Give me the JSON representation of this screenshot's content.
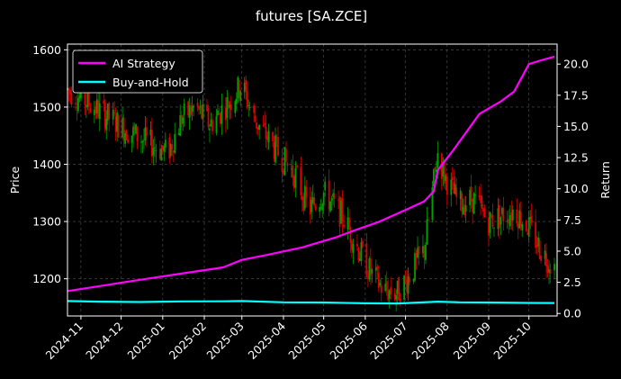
{
  "chart_data": {
    "type": "candlestick+line",
    "title": "futures [SA.ZCE]",
    "ylabel": "Price",
    "y2label": "Return",
    "grid": true,
    "legend_placement": "top-left",
    "xlim": [
      "2024-10-22",
      "2025-10-22"
    ],
    "ylim": [
      1135,
      1610
    ],
    "y2lim": [
      -0.2,
      21.6
    ],
    "x_ticks": [
      "2024-11",
      "2024-12",
      "2025-01",
      "2025-02",
      "2025-03",
      "2025-04",
      "2025-05",
      "2025-06",
      "2025-07",
      "2025-08",
      "2025-09",
      "2025-10"
    ],
    "y_ticks": [
      1200,
      1300,
      1400,
      1500,
      1600
    ],
    "y2_ticks": [
      "0.0",
      "2.5",
      "5.0",
      "7.5",
      "10.0",
      "12.5",
      "15.0",
      "17.5",
      "20.0"
    ],
    "price_anchors": [
      [
        "2024-10-22",
        1530
      ],
      [
        "2024-11-05",
        1510
      ],
      [
        "2024-11-20",
        1485
      ],
      [
        "2024-12-05",
        1460
      ],
      [
        "2024-12-20",
        1440
      ],
      [
        "2025-01-05",
        1420
      ],
      [
        "2025-01-15",
        1480
      ],
      [
        "2025-01-25",
        1500
      ],
      [
        "2025-02-05",
        1470
      ],
      [
        "2025-02-20",
        1510
      ],
      [
        "2025-03-01",
        1540
      ],
      [
        "2025-03-10",
        1480
      ],
      [
        "2025-03-25",
        1430
      ],
      [
        "2025-04-10",
        1380
      ],
      [
        "2025-04-20",
        1320
      ],
      [
        "2025-05-01",
        1350
      ],
      [
        "2025-05-15",
        1310
      ],
      [
        "2025-05-25",
        1260
      ],
      [
        "2025-06-05",
        1210
      ],
      [
        "2025-06-15",
        1180
      ],
      [
        "2025-06-25",
        1175
      ],
      [
        "2025-07-05",
        1210
      ],
      [
        "2025-07-15",
        1250
      ],
      [
        "2025-07-25",
        1420
      ],
      [
        "2025-07-30",
        1380
      ],
      [
        "2025-08-10",
        1330
      ],
      [
        "2025-08-20",
        1340
      ],
      [
        "2025-09-01",
        1300
      ],
      [
        "2025-09-10",
        1310
      ],
      [
        "2025-09-20",
        1320
      ],
      [
        "2025-10-01",
        1290
      ],
      [
        "2025-10-10",
        1250
      ],
      [
        "2025-10-20",
        1220
      ]
    ],
    "series": [
      {
        "name": "AI Strategy",
        "color": "#ff00ff",
        "axis": "right",
        "points": [
          [
            "2024-10-22",
            1.8
          ],
          [
            "2024-11-15",
            2.2
          ],
          [
            "2024-12-15",
            2.7
          ],
          [
            "2025-01-15",
            3.2
          ],
          [
            "2025-02-15",
            3.7
          ],
          [
            "2025-03-01",
            4.3
          ],
          [
            "2025-03-20",
            4.7
          ],
          [
            "2025-04-15",
            5.3
          ],
          [
            "2025-05-10",
            6.1
          ],
          [
            "2025-05-25",
            6.7
          ],
          [
            "2025-06-10",
            7.3
          ],
          [
            "2025-07-01",
            8.3
          ],
          [
            "2025-07-15",
            9.0
          ],
          [
            "2025-07-22",
            9.8
          ],
          [
            "2025-07-25",
            11.5
          ],
          [
            "2025-08-05",
            13.0
          ],
          [
            "2025-08-15",
            14.5
          ],
          [
            "2025-08-25",
            16.0
          ],
          [
            "2025-09-10",
            17.0
          ],
          [
            "2025-09-20",
            17.8
          ],
          [
            "2025-10-01",
            20.0
          ],
          [
            "2025-10-10",
            20.3
          ],
          [
            "2025-10-20",
            20.6
          ]
        ]
      },
      {
        "name": "Buy-and-Hold",
        "color": "#00ffff",
        "axis": "right",
        "points": [
          [
            "2024-10-22",
            1.0
          ],
          [
            "2024-11-15",
            0.95
          ],
          [
            "2024-12-15",
            0.92
          ],
          [
            "2025-01-15",
            0.97
          ],
          [
            "2025-02-15",
            0.98
          ],
          [
            "2025-03-01",
            1.0
          ],
          [
            "2025-04-01",
            0.9
          ],
          [
            "2025-05-01",
            0.88
          ],
          [
            "2025-06-01",
            0.82
          ],
          [
            "2025-06-25",
            0.8
          ],
          [
            "2025-07-25",
            0.95
          ],
          [
            "2025-08-10",
            0.9
          ],
          [
            "2025-09-01",
            0.88
          ],
          [
            "2025-10-01",
            0.85
          ],
          [
            "2025-10-20",
            0.84
          ]
        ]
      }
    ],
    "candle_colors": {
      "up": "#00a000",
      "down": "#e00000"
    }
  }
}
